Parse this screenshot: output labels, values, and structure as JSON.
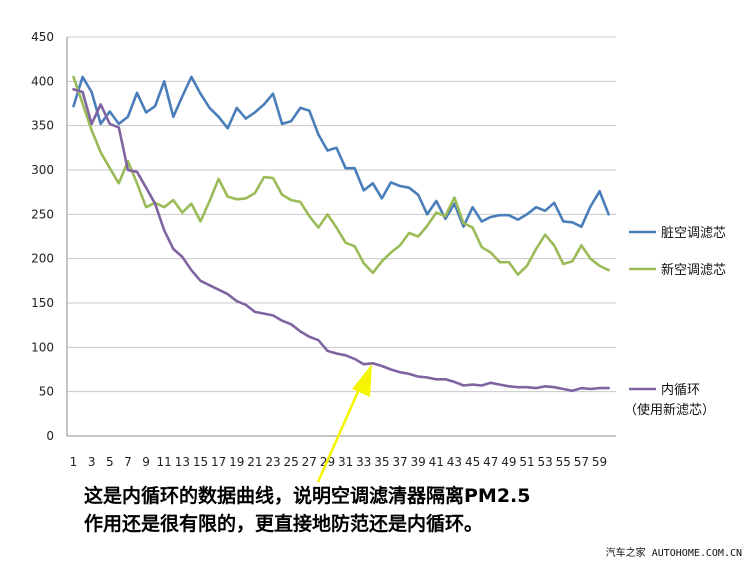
{
  "chart_data": {
    "type": "line",
    "ylim": [
      0,
      450
    ],
    "yticks": [
      0,
      50,
      100,
      150,
      200,
      250,
      300,
      350,
      400,
      450
    ],
    "xtick_labels": [
      1,
      3,
      5,
      7,
      9,
      11,
      13,
      15,
      17,
      19,
      21,
      23,
      25,
      27,
      29,
      31,
      33,
      35,
      37,
      39,
      41,
      43,
      45,
      47,
      49,
      51,
      53,
      55,
      57,
      59
    ],
    "x": [
      1,
      2,
      3,
      4,
      5,
      6,
      7,
      8,
      9,
      10,
      11,
      12,
      13,
      14,
      15,
      16,
      17,
      18,
      19,
      20,
      21,
      22,
      23,
      24,
      25,
      26,
      27,
      28,
      29,
      30,
      31,
      32,
      33,
      34,
      35,
      36,
      37,
      38,
      39,
      40,
      41,
      42,
      43,
      44,
      45,
      46,
      47,
      48,
      49,
      50,
      51,
      52,
      53,
      54,
      55,
      56,
      57,
      58,
      59,
      60
    ],
    "grid": true,
    "legend_position": "right",
    "series": [
      {
        "name": "脏空调滤芯",
        "color": "#4a7ebb",
        "values": [
          372,
          405,
          388,
          352,
          366,
          352,
          360,
          387,
          365,
          372,
          400,
          360,
          383,
          405,
          386,
          370,
          360,
          347,
          370,
          358,
          365,
          374,
          386,
          352,
          355,
          370,
          367,
          340,
          322,
          325,
          302,
          302,
          277,
          285,
          268,
          286,
          282,
          280,
          272,
          250,
          265,
          245,
          262,
          236,
          258,
          242,
          247,
          249,
          249,
          244,
          250,
          258,
          254,
          263,
          242,
          241,
          236,
          259,
          276,
          250
        ]
      },
      {
        "name": "新空调滤芯",
        "color": "#9bbb59",
        "values": [
          405,
          375,
          345,
          320,
          302,
          285,
          310,
          285,
          258,
          263,
          258,
          266,
          252,
          262,
          242,
          265,
          290,
          270,
          267,
          268,
          274,
          292,
          291,
          272,
          266,
          264,
          248,
          235,
          250,
          235,
          218,
          214,
          195,
          184,
          197,
          207,
          215,
          229,
          225,
          237,
          252,
          248,
          269,
          240,
          235,
          213,
          207,
          196,
          196,
          182,
          192,
          211,
          227,
          215,
          194,
          197,
          215,
          200,
          192,
          187
        ]
      },
      {
        "name": "内循环",
        "color": "#8064a2",
        "values": [
          391,
          388,
          352,
          374,
          352,
          348,
          300,
          298,
          280,
          262,
          232,
          211,
          202,
          187,
          175,
          170,
          165,
          160,
          152,
          148,
          140,
          138,
          136,
          130,
          126,
          118,
          112,
          108,
          96,
          93,
          91,
          87,
          81,
          82,
          79,
          75,
          72,
          70,
          67,
          66,
          64,
          64,
          61,
          57,
          58,
          57,
          60,
          58,
          56,
          55,
          55,
          54,
          56,
          55,
          53,
          51,
          54,
          53,
          54,
          54
        ]
      }
    ],
    "legend_note": "（使用新滤芯）",
    "annotation": [
      "这是内循环的数据曲线，说明空调滤清器隔离PM2.5",
      "作用还是很有限的，更直接地防范还是内循环。"
    ],
    "annotation_arrow_color": "#f5f500",
    "gridline_color": "#c8c8c8"
  },
  "watermark": "汽车之家 AUTOHOME.COM.CN"
}
